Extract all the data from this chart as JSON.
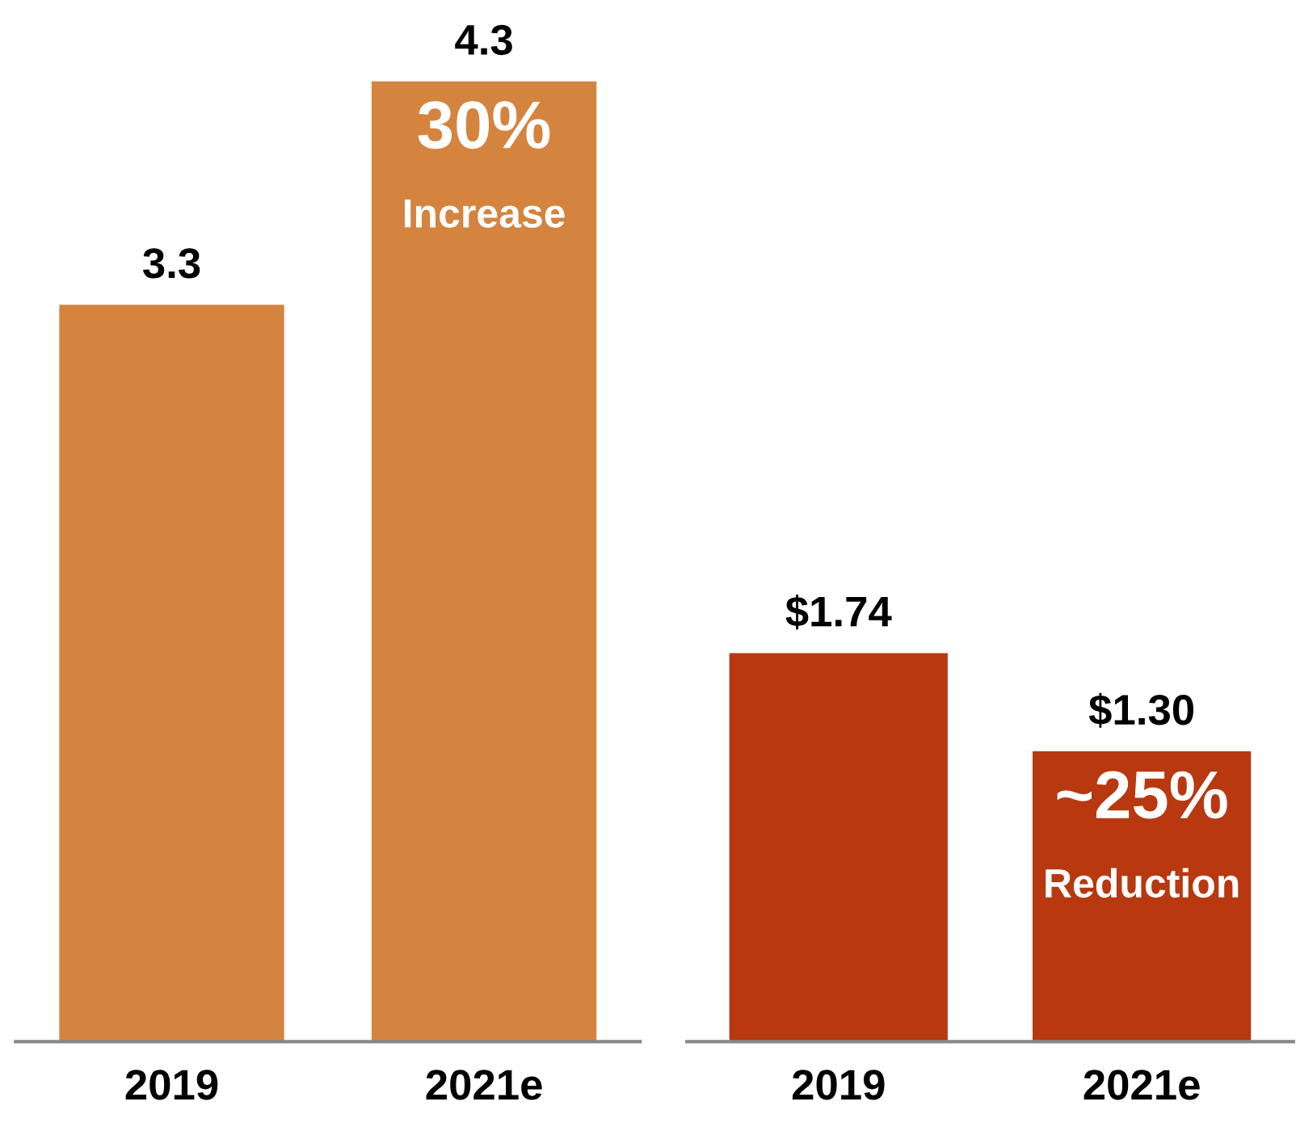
{
  "chart_data": [
    {
      "type": "bar",
      "categories": [
        "2019",
        "2021e"
      ],
      "values": [
        3.3,
        4.3
      ],
      "color": "#d4843f",
      "value_labels": [
        "3.3",
        "4.3"
      ],
      "tick_labels": "x",
      "annotations": [
        {
          "text": "30%",
          "x": "2021e",
          "y": 4.3
        },
        {
          "text": "Increase",
          "x": "2021e",
          "y": 4.3
        }
      ]
    },
    {
      "type": "bar",
      "categories": [
        "2019",
        "2021e"
      ],
      "values": [
        1.74,
        1.3
      ],
      "color": "#b8380f",
      "value_labels": [
        "$1.74",
        "$1.30"
      ],
      "tick_labels": "x",
      "annotations": [
        {
          "text": "~25%",
          "x": "2021e",
          "y": 1.3
        },
        {
          "text": "Reduction",
          "x": "2021e",
          "y": 1.3
        }
      ]
    }
  ]
}
